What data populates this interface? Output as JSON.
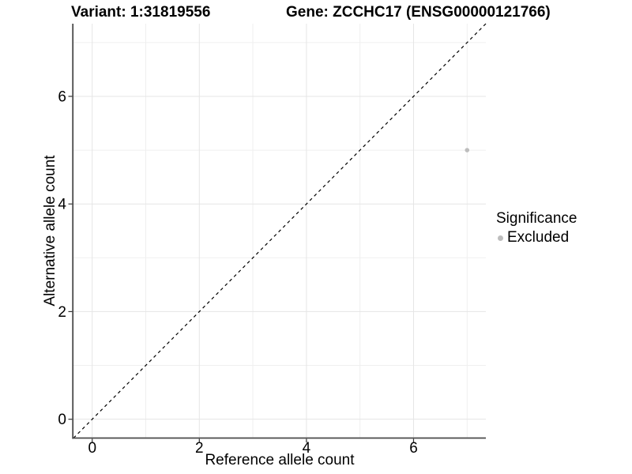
{
  "titles": {
    "variant": "Variant: 1:31819556",
    "gene": "Gene: ZCCHC17 (ENSG00000121766)"
  },
  "legend": {
    "title": "Significance",
    "items": [
      {
        "label": "Excluded",
        "color": "#bdbdbd"
      }
    ]
  },
  "chart_data": {
    "type": "scatter",
    "title": "Variant: 1:31819556  Gene: ZCCHC17 (ENSG00000121766)",
    "xlabel": "Reference allele count",
    "ylabel": "Alternative allele count",
    "xlim": [
      -0.35,
      7.35
    ],
    "ylim": [
      -0.35,
      7.35
    ],
    "x_ticks": [
      0,
      2,
      4,
      6
    ],
    "y_ticks": [
      0,
      2,
      4,
      6
    ],
    "major_gridlines": [
      0,
      2,
      4,
      6
    ],
    "minor_gridlines": [
      1,
      3,
      5,
      7
    ],
    "grid": "on",
    "legend_position": "right",
    "series": [
      {
        "name": "Excluded",
        "color": "#bdbdbd",
        "points": [
          {
            "x": 7,
            "y": 5
          }
        ]
      }
    ],
    "reference_line": {
      "type": "identity y=x",
      "style": "dashed",
      "color": "#000000"
    },
    "colors": {
      "axis_line": "#4a4a4a",
      "major_grid": "#e5e5e5",
      "minor_grid": "#efefef",
      "tick_mark": "#333333",
      "background": "#ffffff"
    }
  }
}
